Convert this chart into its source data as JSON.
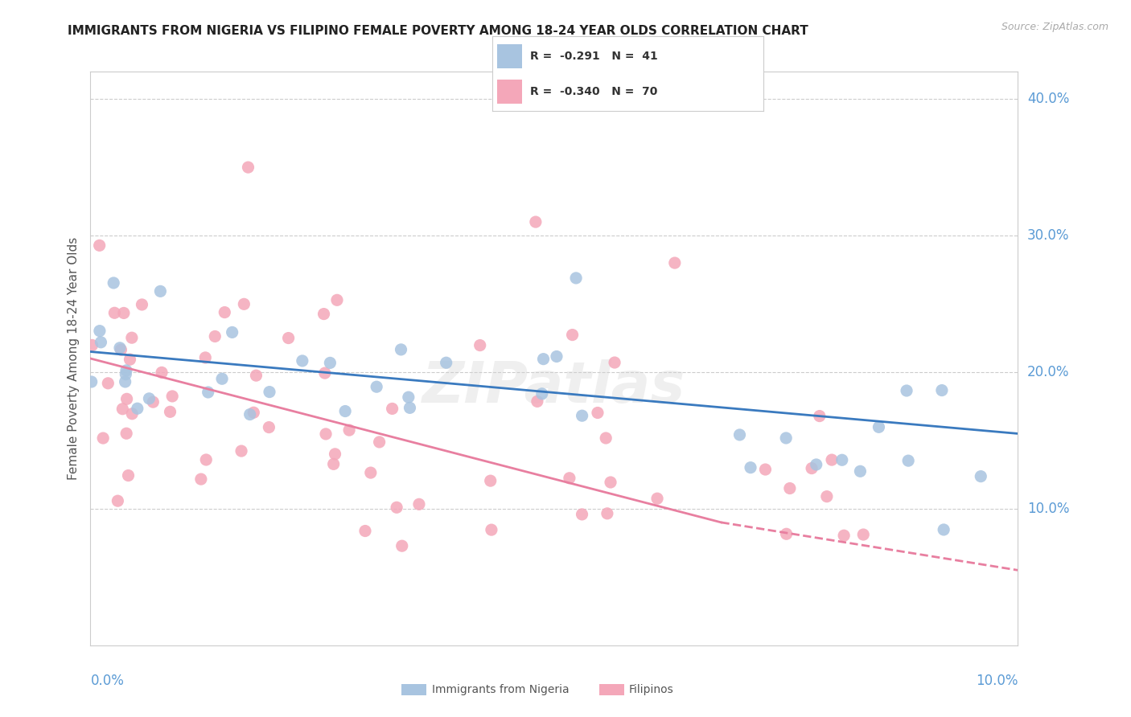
{
  "title": "IMMIGRANTS FROM NIGERIA VS FILIPINO FEMALE POVERTY AMONG 18-24 YEAR OLDS CORRELATION CHART",
  "source": "Source: ZipAtlas.com",
  "ylabel": "Female Poverty Among 18-24 Year Olds",
  "nigeria_color": "#a8c4e0",
  "filipinos_color": "#f4a7b9",
  "nigeria_line_color": "#3a7abf",
  "filipinos_line_color": "#e87fa0",
  "background_color": "#ffffff",
  "grid_color": "#cccccc",
  "axis_label_color": "#5b9bd5",
  "legend_nigeria_r": "-0.291",
  "legend_nigeria_n": "41",
  "legend_filipinos_r": "-0.340",
  "legend_filipinos_n": "70",
  "watermark": "ZIPatlas",
  "xlim": [
    0.0,
    0.1
  ],
  "ylim": [
    0.0,
    0.42
  ],
  "ytick_vals": [
    0.1,
    0.2,
    0.3,
    0.4
  ],
  "ytick_labels": [
    "10.0%",
    "20.0%",
    "30.0%",
    "40.0%"
  ],
  "ng_line": [
    [
      0.0,
      0.215
    ],
    [
      0.1,
      0.155
    ]
  ],
  "fl_line_solid": [
    [
      0.0,
      0.21
    ],
    [
      0.068,
      0.09
    ]
  ],
  "fl_line_dash": [
    [
      0.068,
      0.09
    ],
    [
      0.1,
      0.055
    ]
  ]
}
